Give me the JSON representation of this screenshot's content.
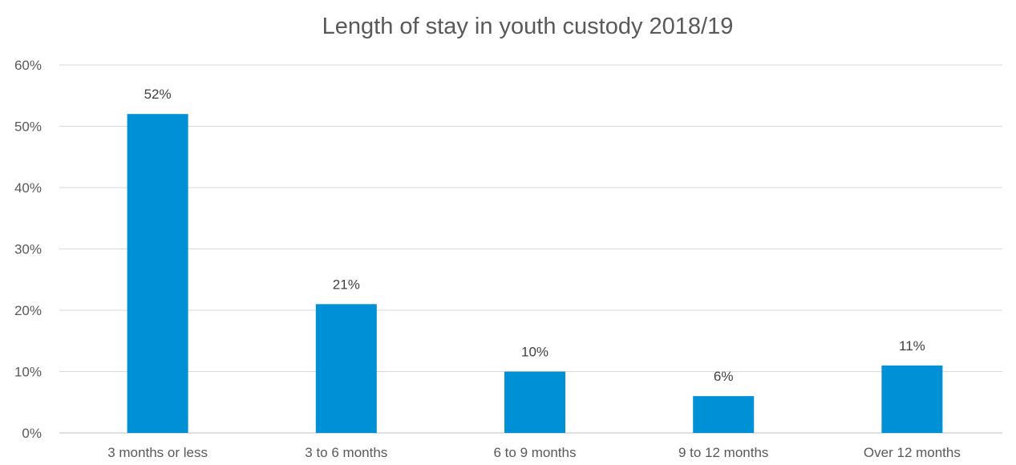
{
  "chart_data": {
    "type": "bar",
    "title": "Length of stay in youth custody 2018/19",
    "xlabel": "",
    "ylabel": "",
    "categories": [
      "3 months or less",
      "3 to 6 months",
      "6 to 9 months",
      "9 to 12 months",
      "Over 12 months"
    ],
    "values": [
      52,
      21,
      10,
      6,
      11
    ],
    "data_labels": [
      "52%",
      "21%",
      "10%",
      "6%",
      "11%"
    ],
    "y_ticks": [
      0,
      10,
      20,
      30,
      40,
      50,
      60
    ],
    "y_tick_labels": [
      "0%",
      "10%",
      "20%",
      "30%",
      "40%",
      "50%",
      "60%"
    ],
    "ylim": [
      0,
      60
    ],
    "grid": true,
    "legend": "none",
    "bar_color": "#0090D6",
    "grid_color": "#D9D9D9",
    "axis_color": "#BFBFBF"
  }
}
